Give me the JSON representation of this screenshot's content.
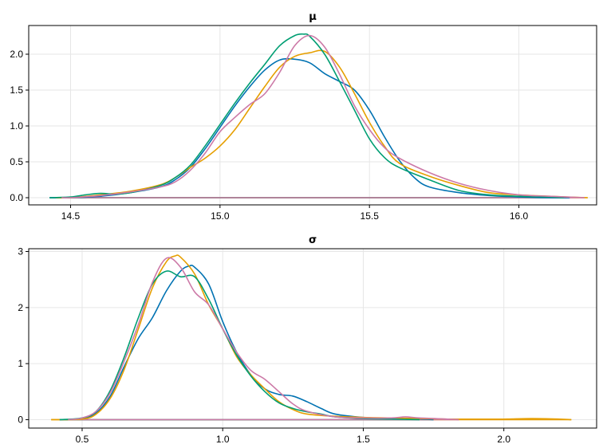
{
  "chart_data": [
    {
      "type": "line",
      "title": "μ",
      "xlabel": "",
      "ylabel": "",
      "xlim": [
        14.36,
        16.26
      ],
      "ylim": [
        -0.1,
        2.4
      ],
      "xticks": [
        14.5,
        15.0,
        15.5,
        16.0
      ],
      "xtick_labels": [
        "14.5",
        "15.0",
        "15.5",
        "16.0"
      ],
      "yticks": [
        0.0,
        0.5,
        1.0,
        1.5,
        2.0
      ],
      "ytick_labels": [
        "0.0",
        "0.5",
        "1.0",
        "1.5",
        "2.0"
      ],
      "grid": true,
      "series": [
        {
          "color": "#0072b2",
          "x": [
            14.43,
            14.5,
            14.6,
            14.7,
            14.8,
            14.85,
            14.9,
            14.95,
            15.0,
            15.05,
            15.1,
            15.15,
            15.2,
            15.25,
            15.3,
            15.35,
            15.4,
            15.45,
            15.5,
            15.55,
            15.6,
            15.65,
            15.7,
            15.8,
            15.9,
            16.0,
            16.1,
            16.17
          ],
          "y": [
            0.0,
            0.0,
            0.02,
            0.07,
            0.15,
            0.25,
            0.42,
            0.68,
            0.98,
            1.28,
            1.55,
            1.78,
            1.92,
            1.93,
            1.88,
            1.73,
            1.62,
            1.5,
            1.22,
            0.85,
            0.52,
            0.28,
            0.15,
            0.07,
            0.03,
            0.01,
            0.0,
            0.0
          ]
        },
        {
          "color": "#e69f00",
          "x": [
            14.45,
            14.5,
            14.6,
            14.7,
            14.8,
            14.85,
            14.9,
            14.95,
            15.0,
            15.05,
            15.1,
            15.15,
            15.2,
            15.25,
            15.3,
            15.35,
            15.4,
            15.45,
            15.5,
            15.55,
            15.6,
            15.7,
            15.8,
            15.9,
            16.0,
            16.1,
            16.23
          ],
          "y": [
            0.0,
            0.0,
            0.04,
            0.09,
            0.18,
            0.28,
            0.42,
            0.55,
            0.72,
            0.95,
            1.25,
            1.55,
            1.82,
            1.97,
            2.02,
            2.04,
            1.82,
            1.45,
            1.05,
            0.72,
            0.48,
            0.3,
            0.17,
            0.07,
            0.04,
            0.02,
            0.0
          ]
        },
        {
          "color": "#009e73",
          "x": [
            14.43,
            14.5,
            14.55,
            14.6,
            14.65,
            14.7,
            14.8,
            14.85,
            14.9,
            14.95,
            15.0,
            15.05,
            15.1,
            15.15,
            15.2,
            15.25,
            15.28,
            15.3,
            15.35,
            15.4,
            15.45,
            15.5,
            15.55,
            15.6,
            15.7,
            15.8,
            15.9,
            16.0,
            16.1,
            16.15
          ],
          "y": [
            0.0,
            0.01,
            0.04,
            0.06,
            0.05,
            0.07,
            0.17,
            0.28,
            0.45,
            0.72,
            1.02,
            1.32,
            1.6,
            1.86,
            2.12,
            2.26,
            2.28,
            2.25,
            2.0,
            1.62,
            1.22,
            0.82,
            0.56,
            0.42,
            0.25,
            0.1,
            0.04,
            0.02,
            0.01,
            0.0
          ]
        },
        {
          "color": "#cc79a7",
          "x": [
            14.47,
            14.5,
            14.6,
            14.7,
            14.8,
            14.85,
            14.9,
            14.95,
            15.0,
            15.05,
            15.1,
            15.15,
            15.2,
            15.25,
            15.3,
            15.35,
            15.4,
            15.45,
            15.5,
            15.55,
            15.6,
            15.7,
            15.8,
            15.9,
            16.0,
            16.1,
            16.22
          ],
          "y": [
            0.0,
            0.0,
            0.03,
            0.08,
            0.15,
            0.22,
            0.38,
            0.62,
            0.92,
            1.12,
            1.3,
            1.45,
            1.75,
            2.12,
            2.26,
            2.1,
            1.72,
            1.28,
            0.95,
            0.7,
            0.55,
            0.35,
            0.2,
            0.1,
            0.04,
            0.02,
            0.0
          ]
        }
      ]
    },
    {
      "type": "line",
      "title": "σ",
      "xlabel": "",
      "ylabel": "",
      "xlim": [
        0.31,
        2.33
      ],
      "ylim": [
        -0.15,
        3.05
      ],
      "xticks": [
        0.5,
        1.0,
        1.5,
        2.0
      ],
      "xtick_labels": [
        "0.5",
        "1.0",
        "1.5",
        "2.0"
      ],
      "yticks": [
        0,
        1,
        2,
        3
      ],
      "ytick_labels": [
        "0",
        "1",
        "2",
        "3"
      ],
      "grid": true,
      "series": [
        {
          "color": "#0072b2",
          "x": [
            0.42,
            0.5,
            0.55,
            0.6,
            0.65,
            0.7,
            0.75,
            0.8,
            0.85,
            0.88,
            0.9,
            0.95,
            1.0,
            1.05,
            1.1,
            1.15,
            1.2,
            1.25,
            1.3,
            1.35,
            1.4,
            1.5,
            1.6,
            1.7,
            1.75
          ],
          "y": [
            0.0,
            0.02,
            0.12,
            0.42,
            0.95,
            1.45,
            1.82,
            2.3,
            2.65,
            2.74,
            2.72,
            2.42,
            1.75,
            1.2,
            0.8,
            0.55,
            0.45,
            0.42,
            0.32,
            0.2,
            0.1,
            0.04,
            0.02,
            0.01,
            0.0
          ]
        },
        {
          "color": "#e69f00",
          "x": [
            0.39,
            0.5,
            0.55,
            0.6,
            0.65,
            0.7,
            0.75,
            0.8,
            0.83,
            0.85,
            0.9,
            0.95,
            1.0,
            1.05,
            1.1,
            1.15,
            1.2,
            1.25,
            1.3,
            1.4,
            1.5,
            1.6,
            1.7,
            1.8,
            1.9,
            2.0,
            2.1,
            2.2,
            2.24
          ],
          "y": [
            0.0,
            0.01,
            0.1,
            0.38,
            0.9,
            1.62,
            2.35,
            2.82,
            2.92,
            2.9,
            2.6,
            2.05,
            1.62,
            1.12,
            0.8,
            0.55,
            0.32,
            0.18,
            0.1,
            0.06,
            0.04,
            0.03,
            0.02,
            0.01,
            0.01,
            0.01,
            0.02,
            0.01,
            0.0
          ]
        },
        {
          "color": "#009e73",
          "x": [
            0.42,
            0.5,
            0.55,
            0.6,
            0.65,
            0.7,
            0.75,
            0.8,
            0.85,
            0.9,
            0.95,
            1.0,
            1.05,
            1.1,
            1.15,
            1.2,
            1.25,
            1.3,
            1.35,
            1.4,
            1.5,
            1.6,
            1.7
          ],
          "y": [
            0.0,
            0.03,
            0.15,
            0.52,
            1.12,
            1.82,
            2.42,
            2.65,
            2.55,
            2.55,
            2.15,
            1.62,
            1.15,
            0.78,
            0.5,
            0.3,
            0.2,
            0.14,
            0.1,
            0.05,
            0.02,
            0.01,
            0.0
          ]
        },
        {
          "color": "#cc79a7",
          "x": [
            0.45,
            0.5,
            0.55,
            0.6,
            0.65,
            0.7,
            0.75,
            0.8,
            0.85,
            0.9,
            0.95,
            1.0,
            1.05,
            1.1,
            1.15,
            1.2,
            1.25,
            1.3,
            1.4,
            1.5,
            1.6,
            1.65,
            1.7,
            1.8,
            1.84
          ],
          "y": [
            0.0,
            0.03,
            0.15,
            0.48,
            1.05,
            1.7,
            2.45,
            2.88,
            2.72,
            2.28,
            2.05,
            1.62,
            1.2,
            0.88,
            0.72,
            0.5,
            0.28,
            0.15,
            0.05,
            0.03,
            0.03,
            0.05,
            0.03,
            0.01,
            0.0
          ]
        }
      ]
    }
  ]
}
